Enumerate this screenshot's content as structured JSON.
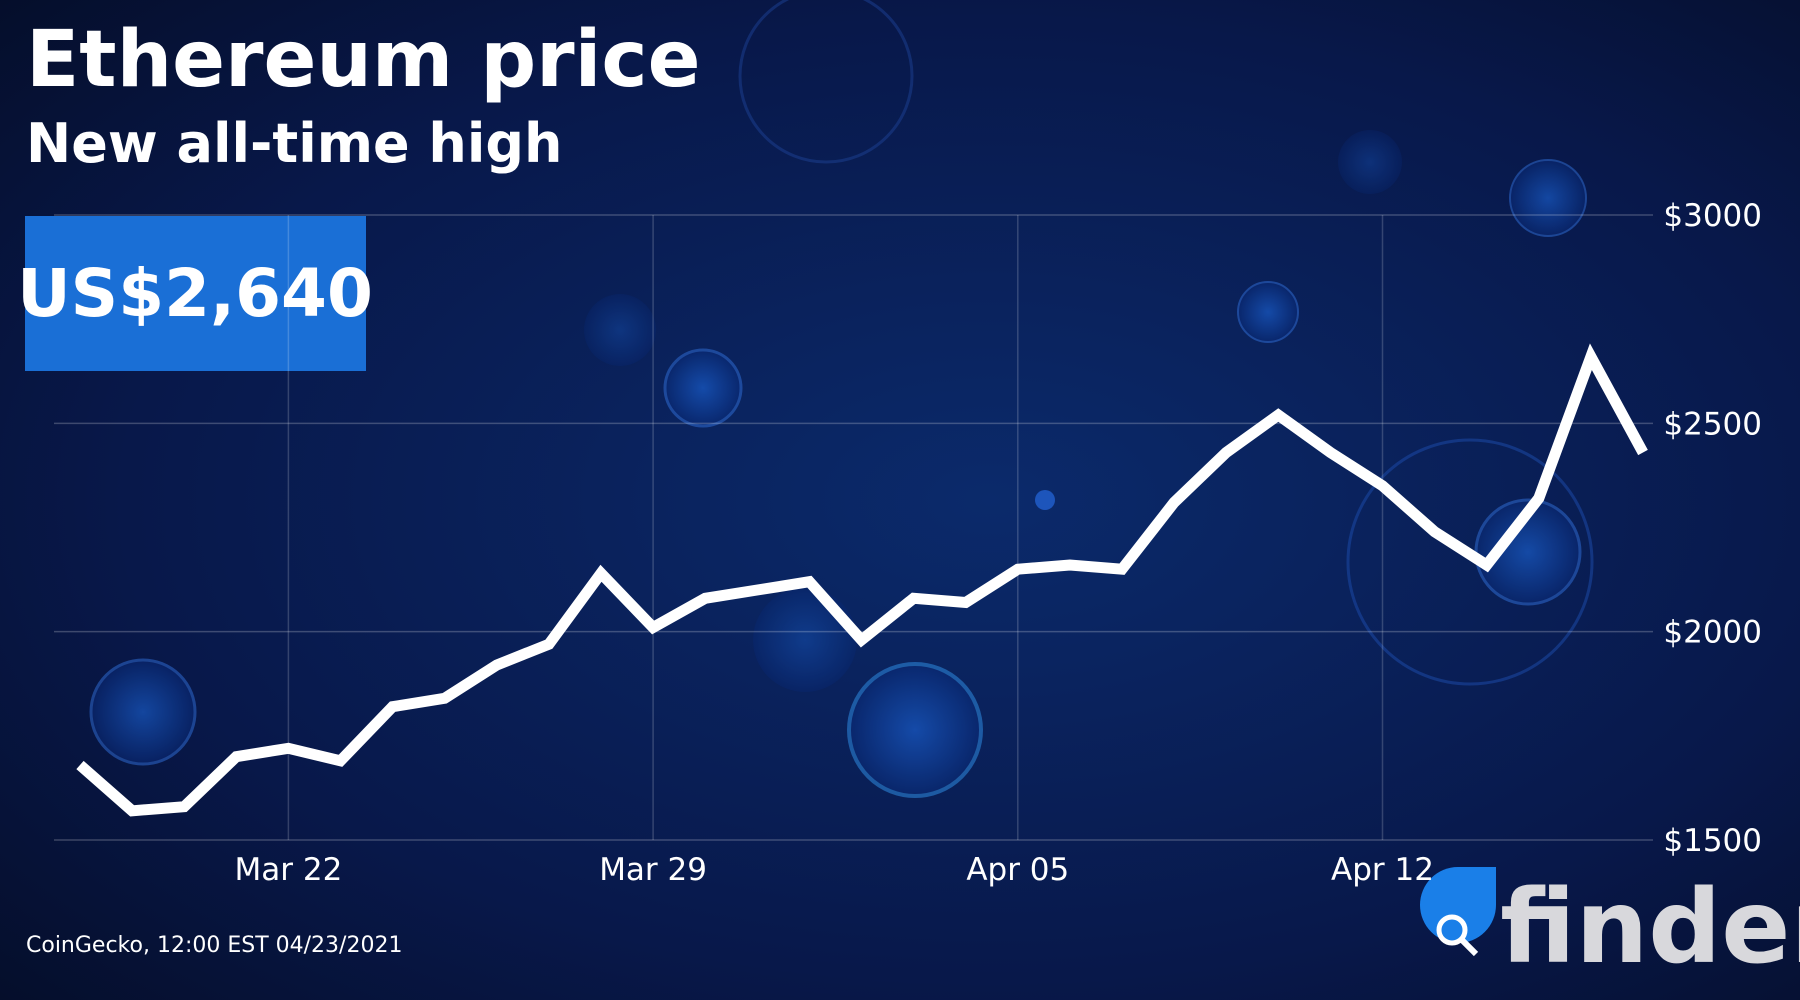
{
  "chart_data": {
    "type": "line",
    "title": "Ethereum price",
    "subtitle": "New all-time high",
    "price_label": "US$2,640",
    "source": "CoinGecko, 12:00 EST 04/23/2021",
    "logo": "finder",
    "x": [
      "Mar 18",
      "Mar 19",
      "Mar 20",
      "Mar 21",
      "Mar 22",
      "Mar 23",
      "Mar 24",
      "Mar 25",
      "Mar 26",
      "Mar 27",
      "Mar 28",
      "Mar 29",
      "Mar 30",
      "Mar 31",
      "Apr 01",
      "Apr 02",
      "Apr 03",
      "Apr 04",
      "Apr 05",
      "Apr 06",
      "Apr 07",
      "Apr 08",
      "Apr 09",
      "Apr 10",
      "Apr 11",
      "Apr 12",
      "Apr 13",
      "Apr 14",
      "Apr 15",
      "Apr 16",
      "Apr 17"
    ],
    "values": [
      1680,
      1570,
      1580,
      1700,
      1720,
      1690,
      1820,
      1840,
      1920,
      1970,
      2140,
      2010,
      2080,
      2100,
      2120,
      1980,
      2080,
      2070,
      2150,
      2160,
      2150,
      2310,
      2430,
      2520,
      2430,
      2350,
      2240,
      2160,
      2320,
      2660,
      2430
    ],
    "color": "#ffffff",
    "xticks": [
      "Mar 22",
      "Mar 29",
      "Apr 05",
      "Apr 12"
    ],
    "ylim": [
      1500,
      3000
    ],
    "yticks": [
      {
        "value": 1500,
        "label": "$1500"
      },
      {
        "value": 2000,
        "label": "$2000"
      },
      {
        "value": 2500,
        "label": "$2500"
      },
      {
        "value": 3000,
        "label": "$3000"
      }
    ],
    "grid": true
  }
}
